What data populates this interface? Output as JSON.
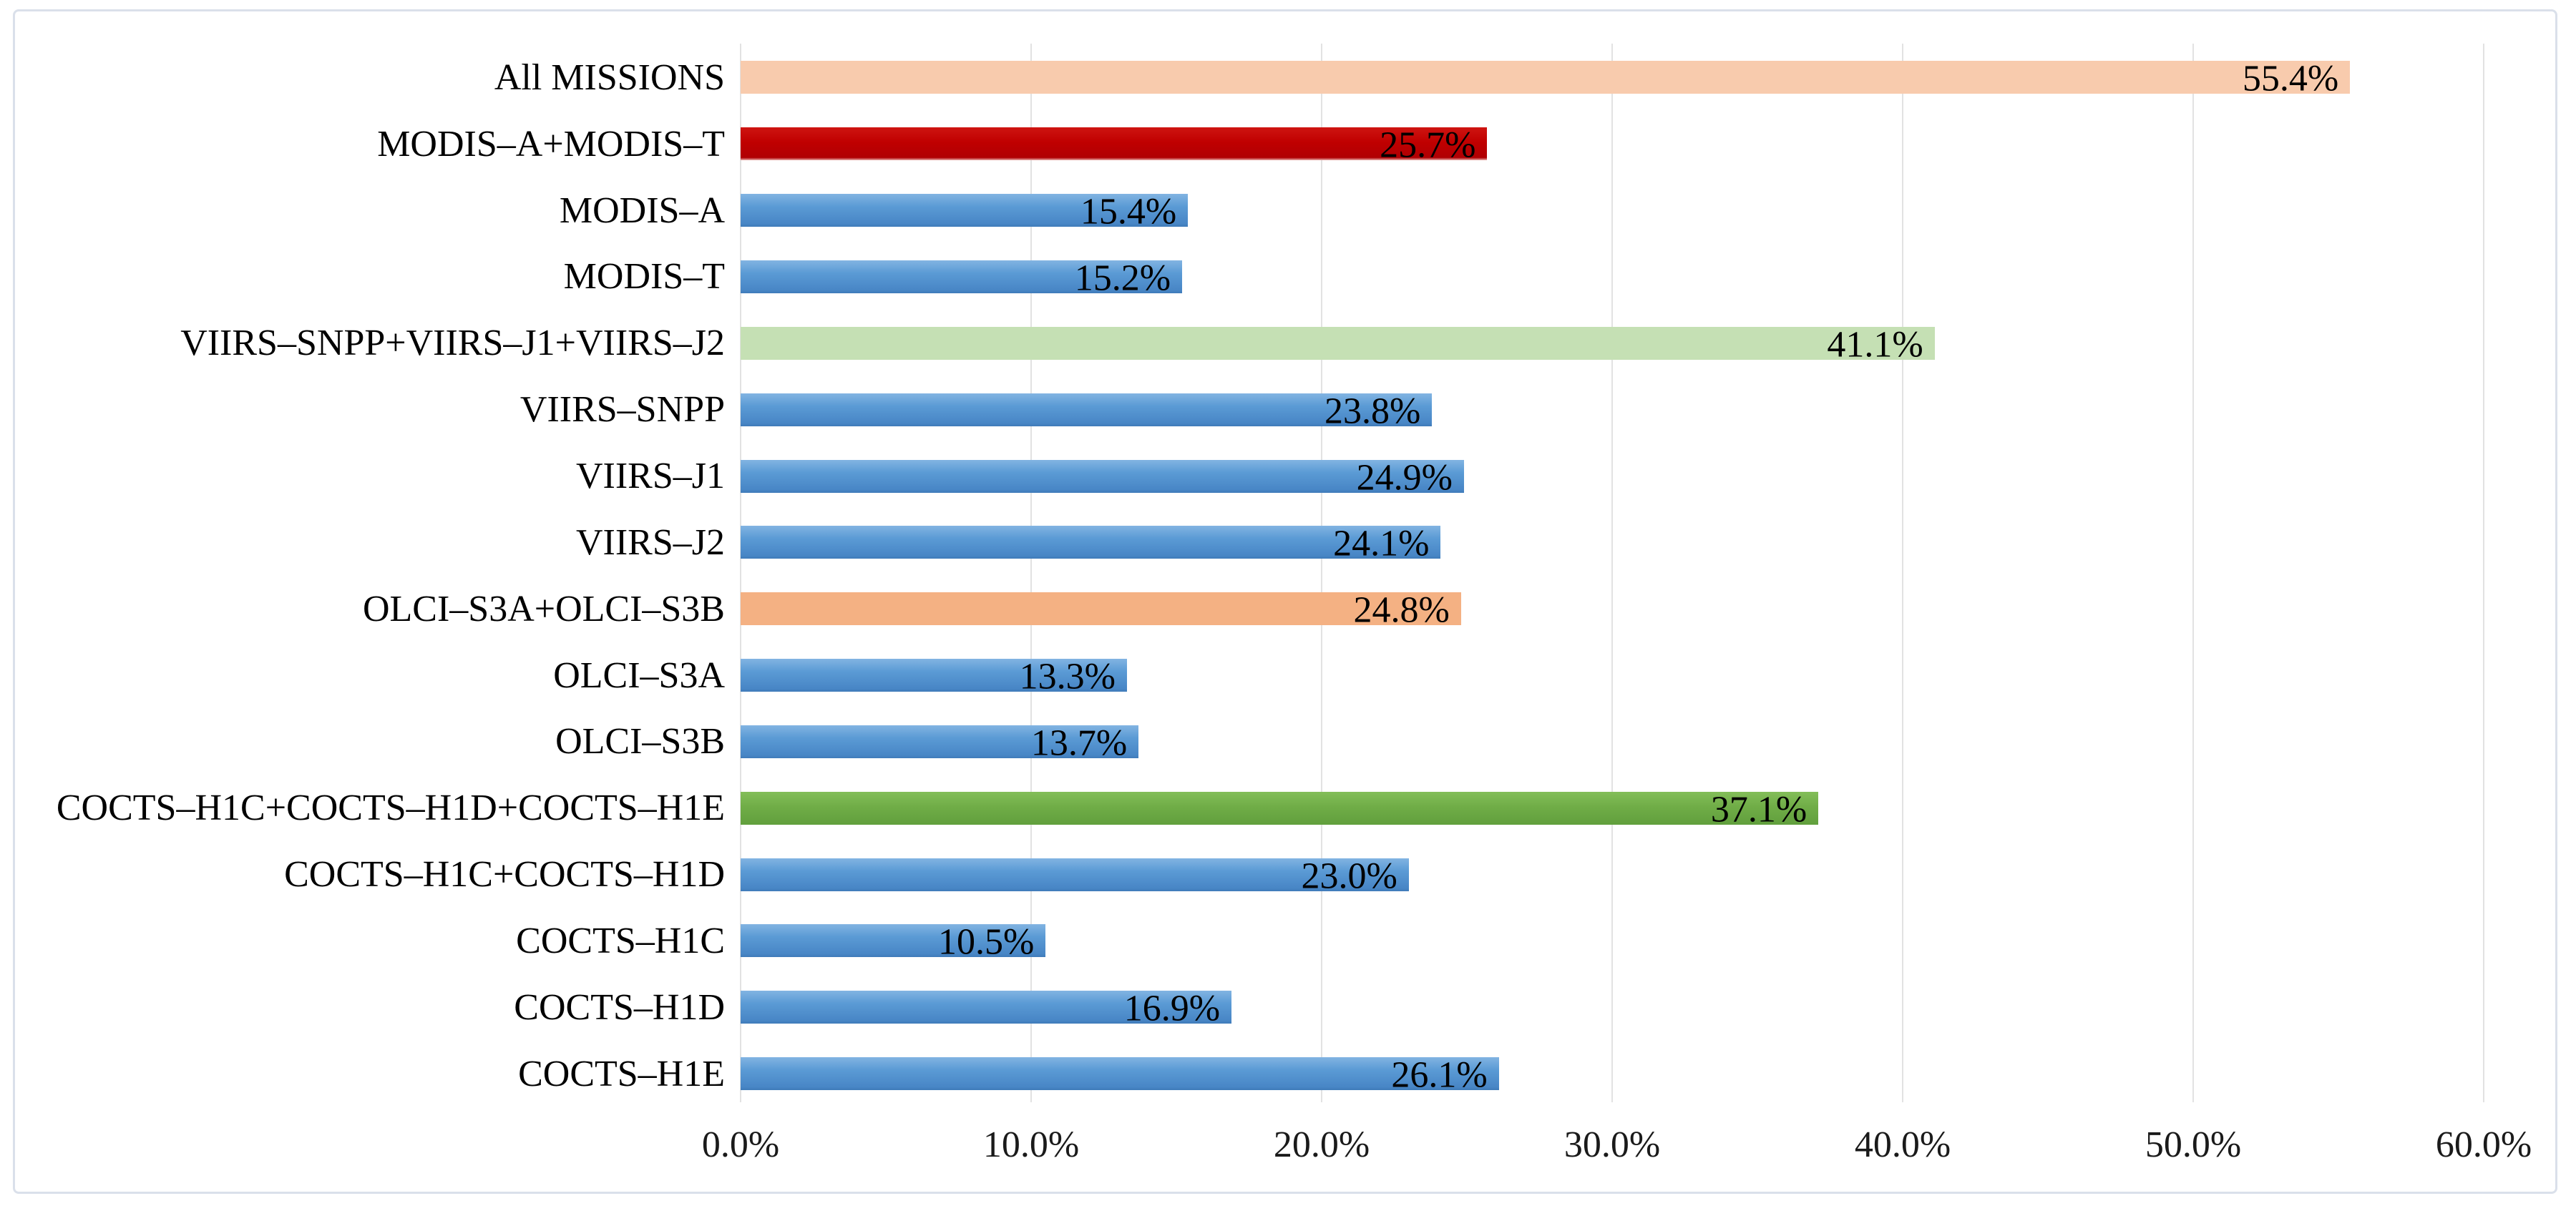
{
  "chart_data": {
    "type": "bar",
    "orientation": "horizontal",
    "title": "",
    "xlabel": "",
    "ylabel": "",
    "grid": "vertical-on",
    "legend": "none",
    "x_axis": {
      "min": 0,
      "max": 60,
      "tick_labels": [
        "0.0%",
        "10.0%",
        "20.0%",
        "30.0%",
        "40.0%",
        "50.0%",
        "60.0%"
      ],
      "tick_values": [
        0,
        10,
        20,
        30,
        40,
        50,
        60
      ]
    },
    "categories": [
      "All MISSIONS",
      "MODIS–A+MODIS–T",
      "MODIS–A",
      "MODIS–T",
      "VIIRS–SNPP+VIIRS–J1+VIIRS–J2",
      "VIIRS–SNPP",
      "VIIRS–J1",
      "VIIRS–J2",
      "OLCI–S3A+OLCI–S3B",
      "OLCI–S3A",
      "OLCI–S3B",
      "COCTS–H1C+COCTS–H1D+COCTS–H1E",
      "COCTS–H1C+COCTS–H1D",
      "COCTS–H1C",
      "COCTS–H1D",
      "COCTS–H1E"
    ],
    "values": [
      55.4,
      25.7,
      15.4,
      15.2,
      41.1,
      23.8,
      24.9,
      24.1,
      24.8,
      13.3,
      13.7,
      37.1,
      23.0,
      10.5,
      16.9,
      26.1
    ],
    "data_labels": [
      "55.4%",
      "25.7%",
      "15.4%",
      "15.2%",
      "41.1%",
      "23.8%",
      "24.9%",
      "24.1%",
      "24.8%",
      "13.3%",
      "13.7%",
      "37.1%",
      "23.0%",
      "10.5%",
      "16.9%",
      "26.1%"
    ],
    "data_label_position": "inside-end",
    "bar_color_keys": [
      "peach",
      "red",
      "blue",
      "blue",
      "light_green",
      "blue",
      "blue",
      "blue",
      "orange",
      "blue",
      "blue",
      "green",
      "blue",
      "blue",
      "blue",
      "blue"
    ],
    "colors": {
      "peach": "#F8CBAD",
      "red": "#C00000",
      "blue": "#5B9BD5",
      "light_green": "#C5E0B4",
      "orange": "#F4B183",
      "green": "#70AD47",
      "gridline": "#E2E2E2",
      "frame_border": "#DAE0EA",
      "label_text": "#000000"
    }
  }
}
